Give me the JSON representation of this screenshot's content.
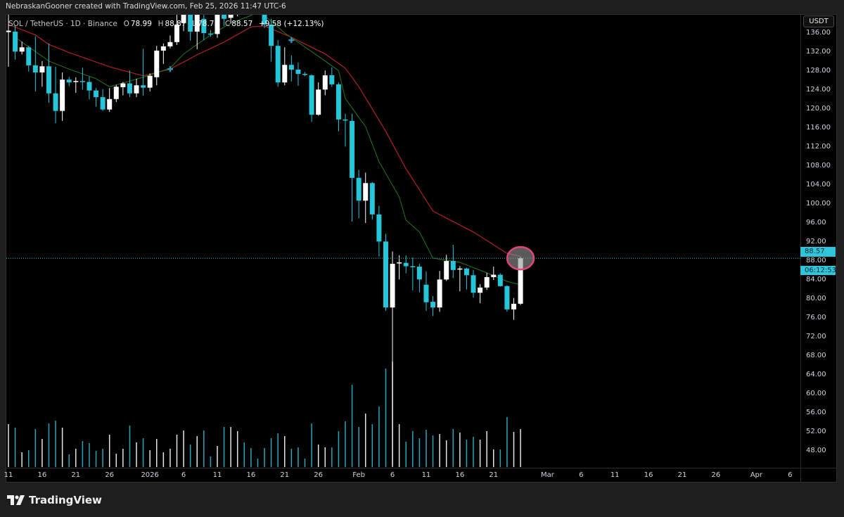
{
  "header": {
    "attribution": "NebraskanGooner created with TradingView.com, Feb 25, 2026 11:47 UTC-6"
  },
  "legend": {
    "symbol": "SOL / TetherUS · 1D · Binance",
    "open_label": "O",
    "open": "78.99",
    "high_label": "H",
    "high": "88.87",
    "low_label": "L",
    "low": "78.73",
    "close_label": "C",
    "close": "88.57",
    "change": "+9.58 (+12.13%)"
  },
  "currency_button": "USDT",
  "last_price": {
    "price": "88.57",
    "countdown": "06:12:53",
    "value": 88.57
  },
  "footer": {
    "brand": "TradingView"
  },
  "colors": {
    "up": "#ffffff",
    "down": "#26c6da",
    "ema_slow": "#b22222",
    "ema_fast": "#1e7a1e",
    "highlight_ring": "#e0457b",
    "last_price": "#2fc5da",
    "marker": "#3a8fb7"
  },
  "chart_data": {
    "type": "candlestick",
    "symbol": "SOL / TetherUS",
    "interval": "1D",
    "ylim": [
      44,
      139.7
    ],
    "price_ticks": [
      "136.00",
      "132.00",
      "128.00",
      "124.00",
      "120.00",
      "116.00",
      "112.00",
      "108.00",
      "104.00",
      "100.00",
      "96.00",
      "92.00",
      "88.00",
      "84.00",
      "80.00",
      "76.00",
      "72.00",
      "68.00",
      "64.00",
      "60.00",
      "56.00",
      "52.00",
      "48.00"
    ],
    "date_ticks": [
      {
        "text": "11",
        "date": "2025-12-11"
      },
      {
        "text": "16",
        "date": "2025-12-16"
      },
      {
        "text": "21",
        "date": "2025-12-21"
      },
      {
        "text": "26",
        "date": "2025-12-26"
      },
      {
        "text": "2026",
        "date": "2026-01-01"
      },
      {
        "text": "6",
        "date": "2026-01-06"
      },
      {
        "text": "11",
        "date": "2026-01-11"
      },
      {
        "text": "16",
        "date": "2026-01-16"
      },
      {
        "text": "21",
        "date": "2026-01-21"
      },
      {
        "text": "26",
        "date": "2026-01-26"
      },
      {
        "text": "Feb",
        "date": "2026-02-01"
      },
      {
        "text": "6",
        "date": "2026-02-06"
      },
      {
        "text": "11",
        "date": "2026-02-11"
      },
      {
        "text": "16",
        "date": "2026-02-16"
      },
      {
        "text": "21",
        "date": "2026-02-21"
      },
      {
        "text": "Mar",
        "date": "2026-03-01"
      },
      {
        "text": "6",
        "date": "2026-03-06"
      },
      {
        "text": "11",
        "date": "2026-03-11"
      },
      {
        "text": "16",
        "date": "2026-03-16"
      },
      {
        "text": "21",
        "date": "2026-03-21"
      },
      {
        "text": "26",
        "date": "2026-03-26"
      },
      {
        "text": "Apr",
        "date": "2026-04-01"
      },
      {
        "text": "6",
        "date": "2026-04-06"
      }
    ],
    "candles_ohlc": [
      [
        "2025-12-11",
        136.2,
        140,
        128.9,
        136.5
      ],
      [
        "2025-12-12",
        136.3,
        137.5,
        130.4,
        132.1
      ],
      [
        "2025-12-13",
        132.1,
        134.2,
        131.5,
        133.0
      ],
      [
        "2025-12-14",
        133.0,
        133.3,
        127.9,
        129.2
      ],
      [
        "2025-12-15",
        129.2,
        135.3,
        123.7,
        127.7
      ],
      [
        "2025-12-16",
        127.7,
        130.1,
        124.7,
        129.0
      ],
      [
        "2025-12-17",
        129.0,
        133.8,
        121.3,
        123.3
      ],
      [
        "2025-12-18",
        123.3,
        128.9,
        117.0,
        119.6
      ],
      [
        "2025-12-19",
        119.6,
        127.7,
        117.5,
        126.2
      ],
      [
        "2025-12-20",
        126.2,
        126.8,
        124.8,
        125.6
      ],
      [
        "2025-12-21",
        125.8,
        126.7,
        123.4,
        125.9
      ],
      [
        "2025-12-22",
        125.9,
        128.7,
        124.1,
        125.7
      ],
      [
        "2025-12-23",
        125.7,
        126.8,
        122.0,
        123.9
      ],
      [
        "2025-12-24",
        123.9,
        124.4,
        120.5,
        122.5
      ],
      [
        "2025-12-25",
        122.5,
        124.2,
        119.6,
        119.9
      ],
      [
        "2025-12-26",
        119.9,
        124.4,
        119.4,
        122.1
      ],
      [
        "2025-12-27",
        122.1,
        125.1,
        121.5,
        124.7
      ],
      [
        "2025-12-28",
        124.6,
        125.7,
        122.9,
        125.4
      ],
      [
        "2025-12-29",
        125.4,
        128.1,
        122.5,
        123.3
      ],
      [
        "2025-12-30",
        123.3,
        126.4,
        122.5,
        125.0
      ],
      [
        "2025-12-31",
        125.0,
        132.7,
        122.8,
        124.5
      ],
      [
        "2026-01-01",
        124.5,
        127.5,
        123.7,
        127.0
      ],
      [
        "2026-01-02",
        126.7,
        133.3,
        125.0,
        132.3
      ],
      [
        "2026-01-03",
        132.3,
        133.8,
        129.5,
        133.2
      ],
      [
        "2026-01-04",
        133.2,
        135.5,
        132.8,
        134.1
      ],
      [
        "2026-01-05",
        134.1,
        141,
        133.5,
        137.8
      ],
      [
        "2026-01-06",
        138.1,
        143,
        136.4,
        141.0
      ],
      [
        "2026-01-07",
        142.0,
        143.0,
        134.4,
        136.3
      ],
      [
        "2026-01-08",
        136.3,
        141.5,
        132.6,
        140.5
      ],
      [
        "2026-01-09",
        139.0,
        140.5,
        134.5,
        136.0
      ],
      [
        "2026-01-10",
        135.9,
        136.6,
        135.2,
        135.8
      ],
      [
        "2026-01-11",
        135.8,
        142.0,
        135.0,
        141.0
      ],
      [
        "2026-01-12",
        141.0,
        142.0,
        137.5,
        139.0
      ],
      [
        "2026-01-13",
        139.2,
        142.0,
        138.0,
        140.0
      ],
      [
        "2026-01-14",
        140.0,
        144.5,
        139.5,
        143.5
      ],
      [
        "2026-01-15",
        143.5,
        146.0,
        141.5,
        142.5
      ],
      [
        "2026-01-16",
        142.5,
        144.0,
        140.5,
        142.0
      ],
      [
        "2026-01-17",
        142.0,
        143.0,
        140.8,
        141.5
      ],
      [
        "2026-01-18",
        141.5,
        142.5,
        137.0,
        137.8
      ],
      [
        "2026-01-19",
        137.8,
        139.0,
        130.0,
        133.3
      ],
      [
        "2026-01-20",
        133.3,
        134.5,
        124.7,
        125.6
      ],
      [
        "2026-01-21",
        125.6,
        133.0,
        125.0,
        129.3
      ],
      [
        "2026-01-22",
        129.3,
        131.3,
        125.8,
        128.3
      ],
      [
        "2026-01-23",
        128.3,
        129.8,
        124.9,
        127.4
      ],
      [
        "2026-01-24",
        127.4,
        127.8,
        126.9,
        127.3
      ],
      [
        "2026-01-25",
        127.1,
        127.3,
        117.3,
        118.8
      ],
      [
        "2026-01-26",
        118.8,
        125.6,
        118.6,
        124.1
      ],
      [
        "2026-01-27",
        124.1,
        128.1,
        122.9,
        127.1
      ],
      [
        "2026-01-28",
        127.1,
        128.8,
        124.7,
        125.2
      ],
      [
        "2026-01-29",
        125.2,
        125.6,
        115.3,
        117.8
      ],
      [
        "2026-01-30",
        117.8,
        119.0,
        112.1,
        117.6
      ],
      [
        "2026-01-31",
        117.5,
        119.0,
        96.3,
        105.5
      ],
      [
        "2026-02-01",
        105.5,
        107.2,
        97.0,
        100.7
      ],
      [
        "2026-02-02",
        100.7,
        106.6,
        96.0,
        104.4
      ],
      [
        "2026-02-03",
        104.4,
        104.6,
        96.7,
        97.8
      ],
      [
        "2026-02-04",
        97.8,
        99.6,
        89.0,
        92.1
      ],
      [
        "2026-02-05",
        92.1,
        93.7,
        77.5,
        78.2
      ],
      [
        "2026-02-06",
        78.2,
        90.0,
        45.0,
        87.4
      ],
      [
        "2026-02-07",
        87.5,
        89.2,
        84.1,
        87.7
      ],
      [
        "2026-02-08",
        87.6,
        89.2,
        85.4,
        86.9
      ],
      [
        "2026-02-09",
        86.9,
        88.7,
        81.8,
        86.8
      ],
      [
        "2026-02-10",
        86.8,
        87.4,
        81.4,
        84.1
      ],
      [
        "2026-02-11",
        83.0,
        85.8,
        77.5,
        79.3
      ],
      [
        "2026-02-12",
        79.4,
        80.6,
        76.4,
        78.2
      ],
      [
        "2026-02-13",
        78.2,
        85.9,
        77.3,
        84.1
      ],
      [
        "2026-02-14",
        84.1,
        89.3,
        83.8,
        88.0
      ],
      [
        "2026-02-15",
        88.0,
        91.4,
        84.4,
        86.1
      ],
      [
        "2026-02-16",
        86.3,
        86.9,
        81.6,
        86.4
      ],
      [
        "2026-02-17",
        86.4,
        86.6,
        82.0,
        85.0
      ],
      [
        "2026-02-18",
        85.0,
        86.1,
        80.3,
        81.3
      ],
      [
        "2026-02-19",
        81.3,
        83.1,
        79.1,
        82.4
      ],
      [
        "2026-02-20",
        82.4,
        85.5,
        81.9,
        84.6
      ],
      [
        "2026-02-21",
        84.6,
        86.8,
        84.0,
        85.1
      ],
      [
        "2026-02-22",
        85.1,
        85.4,
        82.6,
        82.7
      ],
      [
        "2026-02-23",
        82.7,
        82.9,
        77.3,
        77.8
      ],
      [
        "2026-02-24",
        77.8,
        80.2,
        75.6,
        78.99
      ],
      [
        "2026-02-25",
        78.99,
        88.87,
        78.73,
        88.57
      ]
    ],
    "volume_relative": [
      61,
      56,
      21,
      24,
      54,
      40,
      62,
      66,
      56,
      18,
      26,
      37,
      34,
      23,
      26,
      46,
      19,
      26,
      59,
      35,
      41,
      24,
      40,
      21,
      26,
      46,
      52,
      32,
      44,
      52,
      15,
      30,
      57,
      57,
      51,
      35,
      27,
      12,
      27,
      41,
      48,
      44,
      26,
      28,
      12,
      62,
      32,
      28,
      28,
      51,
      65,
      117,
      57,
      76,
      61,
      86,
      140,
      150,
      61,
      36,
      51,
      41,
      53,
      45,
      47,
      38,
      54,
      49,
      39,
      43,
      39,
      51,
      25,
      25,
      71,
      50,
      54
    ],
    "ema_slow": [
      [
        "2025-12-11",
        137.8
      ],
      [
        "2025-12-15",
        135.6
      ],
      [
        "2025-12-17",
        133.6
      ],
      [
        "2025-12-20",
        131.9
      ],
      [
        "2025-12-23",
        130.4
      ],
      [
        "2025-12-26",
        128.9
      ],
      [
        "2025-12-31",
        127.0
      ],
      [
        "2026-01-04",
        128.4
      ],
      [
        "2026-01-08",
        131.4
      ],
      [
        "2026-01-12",
        134.1
      ],
      [
        "2026-01-16",
        137.3
      ],
      [
        "2026-01-18",
        137.5
      ],
      [
        "2026-01-22",
        135.1
      ],
      [
        "2026-01-27",
        131.6
      ],
      [
        "2026-01-30",
        128.6
      ],
      [
        "2026-02-01",
        124.7
      ],
      [
        "2026-02-05",
        115.3
      ],
      [
        "2026-02-08",
        107.4
      ],
      [
        "2026-02-10",
        103.0
      ],
      [
        "2026-02-12",
        98.5
      ],
      [
        "2026-02-18",
        94.1
      ],
      [
        "2026-02-23",
        89.6
      ],
      [
        "2026-02-25",
        89.0
      ]
    ],
    "ema_fast": [
      [
        "2025-12-12",
        135.1
      ],
      [
        "2025-12-17",
        130.1
      ],
      [
        "2025-12-20",
        128.4
      ],
      [
        "2025-12-24",
        126.4
      ],
      [
        "2025-12-26",
        124.7
      ],
      [
        "2025-12-31",
        126.7
      ],
      [
        "2026-01-04",
        128.6
      ],
      [
        "2026-01-06",
        131.6
      ],
      [
        "2026-01-10",
        135.6
      ],
      [
        "2026-01-13",
        138.1
      ],
      [
        "2026-01-16",
        139.7
      ],
      [
        "2026-01-17",
        140.5
      ],
      [
        "2026-01-18",
        139.7
      ],
      [
        "2026-01-21",
        136.0
      ],
      [
        "2026-01-25",
        132.1
      ],
      [
        "2026-01-29",
        128.1
      ],
      [
        "2026-01-30",
        122.2
      ],
      [
        "2026-02-02",
        116.3
      ],
      [
        "2026-02-04",
        108.9
      ],
      [
        "2026-02-07",
        101.5
      ],
      [
        "2026-02-08",
        96.6
      ],
      [
        "2026-02-10",
        94.1
      ],
      [
        "2026-02-12",
        88.6
      ],
      [
        "2026-02-16",
        87.7
      ],
      [
        "2026-02-20",
        85.5
      ],
      [
        "2026-02-23",
        83.7
      ],
      [
        "2026-02-25",
        83.0
      ]
    ],
    "markers": [
      [
        "2026-01-04",
        128.4
      ],
      [
        "2026-01-22",
        134.5
      ]
    ],
    "highlight": {
      "date": "2026-02-25",
      "price": 88.57
    },
    "grid": false,
    "legend_placement": "top-left"
  }
}
